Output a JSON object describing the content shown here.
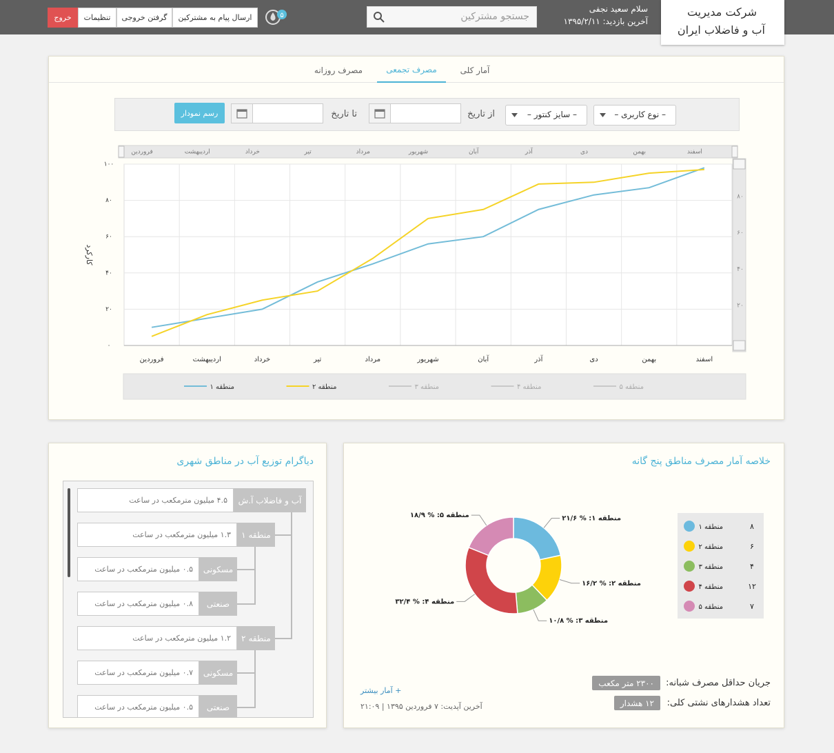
{
  "header": {
    "company": [
      "شرکت مدیریت",
      "آب و فاضلاب ایران"
    ],
    "greeting": "سلام سعید نجفی",
    "last_visit": "آخرین بازدید: ۱۳۹۵/۲/۱۱",
    "search_placeholder": "جستجو مشترکین",
    "notifications": "۵",
    "buttons": [
      "ارسال پیام به مشترکین",
      "گرفتن خروجی",
      "تنظیمات"
    ],
    "logout": "خروج"
  },
  "tabs": {
    "items": [
      "آمار کلی",
      "مصرف تجمعی",
      "مصرف روزانه"
    ],
    "active": 1
  },
  "filters": {
    "user_type": "– نوع کاربری –",
    "meter_size": "– سایز کنتور –",
    "from_label": "از تاریخ",
    "to_label": "تا تاریخ",
    "submit": "رسم نمودار"
  },
  "chart_data": [
    {
      "type": "line",
      "ylabel": "کارکرد",
      "categories": [
        "فروردین",
        "اردیبهشت",
        "خرداد",
        "تیر",
        "مرداد",
        "شهریور",
        "آبان",
        "آذر",
        "دی",
        "بهمن",
        "اسفند"
      ],
      "series": [
        {
          "name": "منطقه ۱",
          "color": "#73bcd8",
          "values": [
            10,
            15,
            20,
            35,
            45,
            56,
            60,
            75,
            83,
            87,
            98
          ]
        },
        {
          "name": "منطقه ۲",
          "color": "#f5d327",
          "values": [
            5,
            17,
            25,
            30,
            48,
            70,
            75,
            89,
            90,
            95,
            97
          ]
        },
        {
          "name": "منطقه ۳",
          "color": "#c8c8c8",
          "visible": false
        },
        {
          "name": "منطقه ۴",
          "color": "#c8c8c8",
          "visible": false
        },
        {
          "name": "منطقه ۵",
          "color": "#c8c8c8",
          "visible": false
        }
      ],
      "ylim": [
        0,
        100
      ],
      "yticks": [
        {
          "value": 0,
          "label": "۰"
        },
        {
          "value": 20,
          "label": "۲۰"
        },
        {
          "value": 40,
          "label": "۴۰"
        },
        {
          "value": 60,
          "label": "۶۰"
        },
        {
          "value": 80,
          "label": "۸۰"
        },
        {
          "value": 100,
          "label": "۱۰۰"
        }
      ],
      "y2lim": [
        0,
        100
      ],
      "y2ticks": [
        {
          "value": 20,
          "label": "۲۰"
        },
        {
          "value": 40,
          "label": "۴۰"
        },
        {
          "value": 60,
          "label": "۶۰"
        },
        {
          "value": 80,
          "label": "۸۰"
        }
      ],
      "grid": true,
      "legend": "bottom"
    },
    {
      "type": "pie",
      "title": "خلاصه آمار مصرف مناطق پنج گانه",
      "categories": [
        "منطقه ۱",
        "منطقه ۲",
        "منطقه ۳",
        "منطقه ۴",
        "منطقه ۵"
      ],
      "values": [
        21.6,
        16.2,
        10.8,
        32.4,
        18.9
      ],
      "value_labels": [
        "منطقه ۱: % ۲۱/۶",
        "منطقه ۲: % ۱۶/۲",
        "منطقه ۳: % ۱۰/۸",
        "منطقه ۴: % ۳۲/۴",
        "منطقه ۵: % ۱۸/۹"
      ],
      "colors": [
        "#6cbade",
        "#fdd20a",
        "#8cbd5f",
        "#d0454a",
        "#d58ab4"
      ],
      "legend_values": [
        {
          "value": 8,
          "label": "۸"
        },
        {
          "value": 6,
          "label": "۶"
        },
        {
          "value": 4,
          "label": "۴"
        },
        {
          "value": 12,
          "label": "۱۲"
        },
        {
          "value": 7,
          "label": "۷"
        }
      ],
      "legend": "right"
    }
  ],
  "tree": {
    "title": "دیاگرام توزیع آب در مناطق شهری",
    "nodes": [
      {
        "label": "آب و فاضلاب آ.ش",
        "value": "۴.۵ میلیون مترمکعب در ساعت",
        "level": 0
      },
      {
        "label": "منطقه ۱",
        "value": "۱.۳ میلیون مترمکعب در ساعت",
        "level": 1
      },
      {
        "label": "مسکونی",
        "value": "۰.۵ میلیون مترمکعب در ساعت",
        "level": 2
      },
      {
        "label": "صنعتی",
        "value": "۰.۸ میلیون مترمکعب در ساعت",
        "level": 2
      },
      {
        "label": "منطقه ۲",
        "value": "۱.۲ میلیون مترمکعب در ساعت",
        "level": 1
      },
      {
        "label": "مسکونی",
        "value": "۰.۷ میلیون مترمکعب در ساعت",
        "level": 2
      },
      {
        "label": "صنعتی",
        "value": "۰.۵ میلیون مترمکعب در ساعت",
        "level": 2
      }
    ]
  },
  "summary": {
    "items": [
      {
        "label": "جریان حداقل مصرف شبانه:",
        "badge": "۲۳۰۰ متر مکعب"
      },
      {
        "label": "تعداد هشدارهای نشتی کلی:",
        "badge": "۱۲ هشدار"
      }
    ],
    "more_link": "+ آمار بیشتر",
    "last_update": "آخرین آپدیت: ۷ فروردین ۱۳۹۵ | ۲۱:۰۹"
  }
}
